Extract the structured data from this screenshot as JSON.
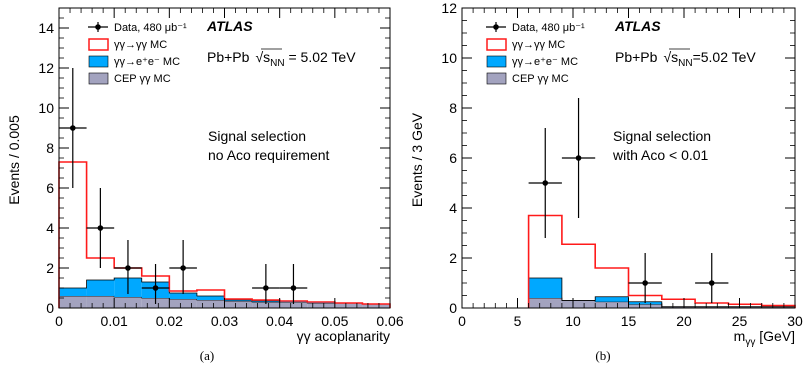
{
  "colors": {
    "gg": "#ff1a1a",
    "ee": "#00a8ff",
    "cep": "#a3a3bf",
    "data": "#000000"
  },
  "chart_data": [
    {
      "type": "bar",
      "subtype": "histogram",
      "caption": "(a)",
      "xlabel": "γγ acoplanarity",
      "ylabel": "Events / 0.005",
      "xlim": [
        0,
        0.06
      ],
      "ylim": [
        0,
        15
      ],
      "xticks": [
        "0",
        "0.01",
        "0.02",
        "0.03",
        "0.04",
        "0.05",
        "0.06"
      ],
      "yticks": [
        "0",
        "2",
        "4",
        "6",
        "8",
        "10",
        "12",
        "14"
      ],
      "bin_edges": [
        0,
        0.005,
        0.01,
        0.015,
        0.02,
        0.025,
        0.03,
        0.035,
        0.04,
        0.045,
        0.05,
        0.055,
        0.06
      ],
      "stack": {
        "cep": [
          0.6,
          0.6,
          0.55,
          0.5,
          0.45,
          0.4,
          0.35,
          0.3,
          0.3,
          0.25,
          0.25,
          0.2
        ],
        "ee": [
          0.4,
          0.8,
          0.95,
          0.8,
          0.3,
          0.2,
          0.05,
          0.05,
          0.05,
          0.05,
          0.0,
          0.0
        ],
        "gg": [
          6.3,
          1.1,
          0.5,
          0.3,
          0.1,
          0.3,
          0.05,
          0.05,
          0.0,
          0.0,
          0.0,
          0.0
        ]
      },
      "data_points": {
        "x": [
          0.0025,
          0.0075,
          0.0125,
          0.0175,
          0.0225,
          0.0375,
          0.0425
        ],
        "y": [
          9,
          4,
          2,
          1,
          2,
          1,
          1
        ],
        "yerr_low": [
          3,
          2,
          1.3,
          0.8,
          1.3,
          0.8,
          0.8
        ],
        "yerr_high": [
          3,
          2,
          1.4,
          1.2,
          1.4,
          1.2,
          1.2
        ],
        "xerr": 0.0025
      },
      "legend": {
        "placement": "top-left",
        "entries": [
          "Data, 480 μb⁻¹",
          "γγ→γγ MC",
          "γγ→e⁺e⁻ MC",
          "CEP γγ MC"
        ]
      },
      "label": "ATLAS",
      "system": "Pb+Pb",
      "energy": "√sNN = 5.02 TeV",
      "energy_sqrt": "√",
      "energy_s": "s",
      "energy_sub": "NN",
      "energy_val": " = 5.02 TeV",
      "annotation": [
        "Signal selection",
        "no Aco requirement"
      ]
    },
    {
      "type": "bar",
      "subtype": "histogram",
      "caption": "(b)",
      "xlabel": "mγγ [GeV]",
      "xlabel_main": "m",
      "xlabel_sub": "γγ",
      "xlabel_unit": " [GeV]",
      "ylabel": "Events / 3 GeV",
      "xlim": [
        0,
        30
      ],
      "ylim": [
        0,
        12
      ],
      "xticks": [
        "0",
        "5",
        "10",
        "15",
        "20",
        "25",
        "30"
      ],
      "yticks": [
        "0",
        "2",
        "4",
        "6",
        "8",
        "10",
        "12"
      ],
      "bin_edges": [
        6,
        9,
        12,
        15,
        18,
        21,
        24,
        27,
        30
      ],
      "stack": {
        "cep": [
          0.4,
          0.3,
          0.25,
          0.15,
          0.05,
          0.05,
          0.05,
          0.05
        ],
        "ee": [
          0.8,
          0.0,
          0.2,
          0.1,
          0.0,
          0.0,
          0.0,
          0.0
        ],
        "gg": [
          2.5,
          2.25,
          1.15,
          0.25,
          0.3,
          0.15,
          0.1,
          0.05
        ]
      },
      "data_points": {
        "x": [
          7.5,
          10.5,
          16.5,
          22.5
        ],
        "y": [
          5,
          6,
          1,
          1
        ],
        "yerr_low": [
          2.2,
          2.4,
          0.8,
          0.8
        ],
        "yerr_high": [
          2.2,
          2.4,
          1.2,
          1.2
        ],
        "xerr": 1.5
      },
      "legend": {
        "placement": "top-left",
        "entries": [
          "Data, 480 μb⁻¹",
          "γγ→γγ MC",
          "γγ→e⁺e⁻ MC",
          "CEP γγ MC"
        ]
      },
      "label": "ATLAS",
      "system": "Pb+Pb",
      "energy": "√sNN=5.02 TeV",
      "energy_sqrt": "√",
      "energy_s": "s",
      "energy_sub": "NN",
      "energy_val": "=5.02 TeV",
      "annotation": [
        "Signal selection",
        "with Aco < 0.01"
      ]
    }
  ]
}
